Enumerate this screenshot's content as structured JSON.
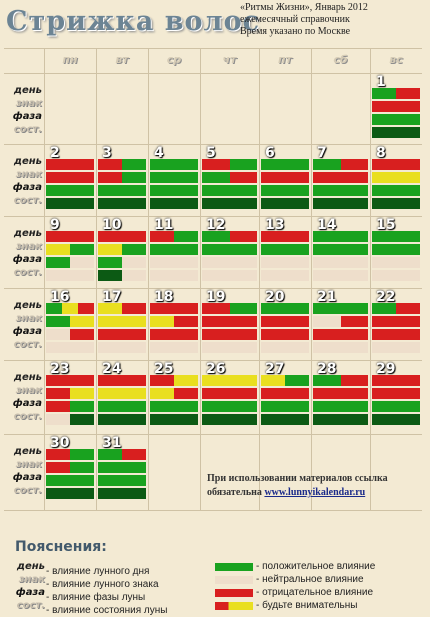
{
  "title": "Стрижка волос",
  "info": {
    "line1": "«Ритмы Жизни», Январь 2012",
    "line2": "ежемесячный справочник",
    "line3": "Время указано по Москве"
  },
  "weekdays": [
    "пн",
    "вт",
    "ср",
    "чт",
    "пт",
    "сб",
    "вс"
  ],
  "row_labels": {
    "day": "день",
    "sign": "знак",
    "phase": "фаза",
    "state": "сост."
  },
  "colors": {
    "green": "#19a21f",
    "red": "#d81f1f",
    "yellow": "#e9df20",
    "dark": "#0c5a14",
    "beige": "#eedecb"
  },
  "days": [
    {
      "n": "1",
      "bars": [
        [
          "G",
          "R"
        ],
        [
          "R"
        ],
        [
          "G"
        ],
        [
          "D"
        ]
      ]
    },
    {
      "n": "2",
      "bars": [
        [
          "R"
        ],
        [
          "R"
        ],
        [
          "G"
        ],
        [
          "D"
        ]
      ]
    },
    {
      "n": "3",
      "bars": [
        [
          "R",
          "G"
        ],
        [
          "R",
          "G"
        ],
        [
          "G"
        ],
        [
          "D"
        ]
      ]
    },
    {
      "n": "4",
      "bars": [
        [
          "G"
        ],
        [
          "G"
        ],
        [
          "G"
        ],
        [
          "D"
        ]
      ]
    },
    {
      "n": "5",
      "bars": [
        [
          "R",
          "G"
        ],
        [
          "G",
          "R"
        ],
        [
          "G"
        ],
        [
          "D"
        ]
      ]
    },
    {
      "n": "6",
      "bars": [
        [
          "G"
        ],
        [
          "R"
        ],
        [
          "G"
        ],
        [
          "D"
        ]
      ]
    },
    {
      "n": "7",
      "bars": [
        [
          "G",
          "R"
        ],
        [
          "R"
        ],
        [
          "G"
        ],
        [
          "D"
        ]
      ]
    },
    {
      "n": "8",
      "bars": [
        [
          "R"
        ],
        [
          "Y"
        ],
        [
          "G"
        ],
        [
          "D"
        ]
      ]
    },
    {
      "n": "9",
      "bars": [
        [
          "R"
        ],
        [
          "Y",
          "G"
        ],
        [
          "G",
          ""
        ],
        [
          "",
          ""
        ]
      ]
    },
    {
      "n": "10",
      "bars": [
        [
          "R"
        ],
        [
          "Y",
          "G"
        ],
        [
          "G",
          ""
        ],
        [
          "D",
          ""
        ]
      ]
    },
    {
      "n": "11",
      "bars": [
        [
          "R",
          "G"
        ],
        [
          "G"
        ],
        [
          ""
        ],
        [
          ""
        ]
      ]
    },
    {
      "n": "12",
      "bars": [
        [
          "G",
          "R"
        ],
        [
          "G"
        ],
        [
          ""
        ],
        [
          ""
        ]
      ]
    },
    {
      "n": "13",
      "bars": [
        [
          "R"
        ],
        [
          "G"
        ],
        [
          ""
        ],
        [
          ""
        ]
      ]
    },
    {
      "n": "14",
      "bars": [
        [
          "G"
        ],
        [
          "G"
        ],
        [
          ""
        ],
        [
          ""
        ]
      ]
    },
    {
      "n": "15",
      "bars": [
        [
          "G"
        ],
        [
          "G"
        ],
        [
          ""
        ],
        [
          ""
        ]
      ]
    },
    {
      "n": "16",
      "bars": [
        [
          "G",
          "Y",
          "R"
        ],
        [
          "G",
          "Y"
        ],
        [
          "",
          "R"
        ],
        [
          ""
        ]
      ]
    },
    {
      "n": "17",
      "bars": [
        [
          "Y",
          "R"
        ],
        [
          "Y"
        ],
        [
          "R"
        ],
        [
          ""
        ]
      ]
    },
    {
      "n": "18",
      "bars": [
        [
          "R"
        ],
        [
          "Y",
          "R"
        ],
        [
          "R"
        ],
        [
          ""
        ]
      ]
    },
    {
      "n": "19",
      "bars": [
        [
          "R",
          "G"
        ],
        [
          "R"
        ],
        [
          "R"
        ],
        [
          ""
        ]
      ]
    },
    {
      "n": "20",
      "bars": [
        [
          "G"
        ],
        [
          "R"
        ],
        [
          "R"
        ],
        [
          ""
        ]
      ]
    },
    {
      "n": "21",
      "bars": [
        [
          "G"
        ],
        [
          "",
          "R"
        ],
        [
          "R"
        ],
        [
          ""
        ]
      ]
    },
    {
      "n": "22",
      "bars": [
        [
          "G",
          "R"
        ],
        [
          "R"
        ],
        [
          "R"
        ],
        [
          ""
        ]
      ]
    },
    {
      "n": "23",
      "bars": [
        [
          "R"
        ],
        [
          "R",
          "Y"
        ],
        [
          "R",
          "G"
        ],
        [
          "",
          "D"
        ]
      ]
    },
    {
      "n": "24",
      "bars": [
        [
          "R"
        ],
        [
          "Y"
        ],
        [
          "G"
        ],
        [
          "D"
        ]
      ]
    },
    {
      "n": "25",
      "bars": [
        [
          "R",
          "Y"
        ],
        [
          "Y",
          "R"
        ],
        [
          "G"
        ],
        [
          "D"
        ]
      ]
    },
    {
      "n": "26",
      "bars": [
        [
          "Y"
        ],
        [
          "R"
        ],
        [
          "G"
        ],
        [
          "D"
        ]
      ]
    },
    {
      "n": "27",
      "bars": [
        [
          "Y",
          "G"
        ],
        [
          "R"
        ],
        [
          "G"
        ],
        [
          "D"
        ]
      ]
    },
    {
      "n": "28",
      "bars": [
        [
          "G",
          "R"
        ],
        [
          "R"
        ],
        [
          "G"
        ],
        [
          "D"
        ]
      ]
    },
    {
      "n": "29",
      "bars": [
        [
          "R"
        ],
        [
          "R"
        ],
        [
          "G"
        ],
        [
          "D"
        ]
      ]
    },
    {
      "n": "30",
      "bars": [
        [
          "R",
          "G"
        ],
        [
          "R",
          "G"
        ],
        [
          "G"
        ],
        [
          "D"
        ]
      ]
    },
    {
      "n": "31",
      "bars": [
        [
          "G",
          "R"
        ],
        [
          "G"
        ],
        [
          "G"
        ],
        [
          "D"
        ]
      ]
    }
  ],
  "footer": {
    "line1": "При использовании материалов ссылка",
    "line2": "обязательна",
    "link": "www.lunnyikalendar.ru"
  },
  "legend": {
    "title": "Пояснения:",
    "left": [
      {
        "label": "день",
        "text": "- влияние лунного дня"
      },
      {
        "label": "знак",
        "text": "- влияние лунного знака"
      },
      {
        "label": "фаза",
        "text": "- влияние фазы луны"
      },
      {
        "label": "сост.",
        "text": "- влияние состояния луны"
      }
    ],
    "right": [
      {
        "color": "G",
        "text": "- положительное влияние"
      },
      {
        "color": "B",
        "text": "- нейтральное влияние"
      },
      {
        "color": "R",
        "text": "- отрицательное влияние"
      },
      {
        "color": "RY",
        "text": "- будьте внимательны"
      }
    ]
  }
}
